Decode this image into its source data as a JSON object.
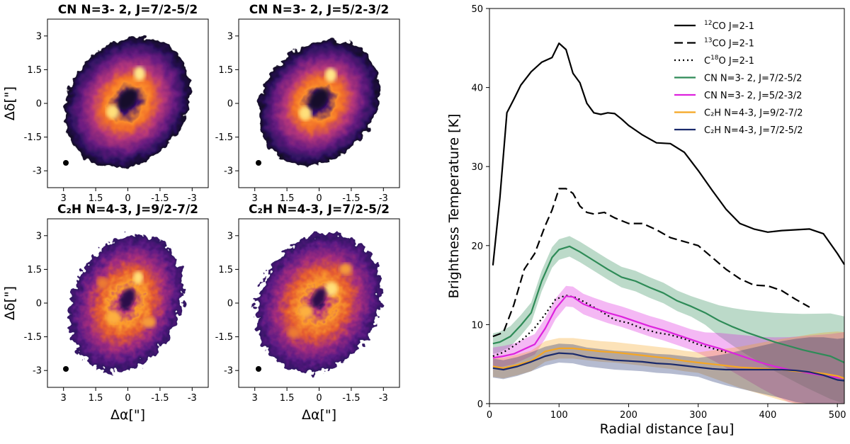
{
  "maps": {
    "panels": [
      {
        "title": "CN N=3- 2, J=7/2-5/2",
        "pattern": "ring"
      },
      {
        "title": "CN N=3- 2, J=5/2-3/2",
        "pattern": "ring"
      },
      {
        "title": "C₂H N=4-3, J=9/2-7/2",
        "pattern": "clumpy"
      },
      {
        "title": "C₂H N=4-3, J=7/2-5/2",
        "pattern": "clumpy"
      }
    ],
    "xticks": [
      "3",
      "1.5",
      "0",
      "-1.5",
      "-3"
    ],
    "yticks": [
      "3",
      "1.5",
      "0",
      "-1.5",
      "-3"
    ],
    "xlabel": "Δα[\"]",
    "ylabel": "Δδ[\"]"
  },
  "chart_data": {
    "type": "line",
    "xlabel": "Radial distance [au]",
    "ylabel": "Brightness Temperature [K]",
    "xlim": [
      0,
      510
    ],
    "ylim": [
      0,
      50
    ],
    "xticks": [
      0,
      100,
      200,
      300,
      400,
      500
    ],
    "yticks": [
      0,
      10,
      20,
      30,
      40,
      50
    ],
    "legend_position": "top-right",
    "series": [
      {
        "name": "12CO J=2-1",
        "label_parts": [
          "",
          "12",
          "CO J=2-1"
        ],
        "color": "#000000",
        "dash": "solid",
        "x": [
          5,
          15,
          25,
          35,
          45,
          60,
          75,
          90,
          100,
          110,
          120,
          130,
          140,
          150,
          160,
          170,
          180,
          190,
          200,
          220,
          240,
          260,
          280,
          300,
          320,
          340,
          360,
          380,
          400,
          420,
          440,
          460,
          480,
          500,
          510
        ],
        "y": [
          17.5,
          26,
          36.8,
          38.5,
          40.3,
          42,
          43.2,
          43.8,
          45.6,
          44.8,
          41.8,
          40.6,
          38,
          36.8,
          36.6,
          36.8,
          36.7,
          36,
          35.2,
          34,
          33,
          32.9,
          31.8,
          29.5,
          27,
          24.6,
          22.8,
          22.1,
          21.7,
          21.9,
          22,
          22.1,
          21.5,
          19,
          17.6
        ]
      },
      {
        "name": "13CO J=2-1",
        "label_parts": [
          "",
          "13",
          "CO J=2-1"
        ],
        "color": "#000000",
        "dash": "12,6",
        "x": [
          5,
          20,
          35,
          50,
          65,
          80,
          90,
          100,
          110,
          120,
          130,
          140,
          150,
          165,
          180,
          200,
          220,
          240,
          260,
          280,
          300,
          320,
          340,
          360,
          380,
          400,
          420,
          440,
          460
        ],
        "y": [
          8.5,
          9,
          12.5,
          17,
          19,
          22.5,
          24.5,
          27.2,
          27.2,
          26.6,
          25,
          24.2,
          24,
          24.2,
          23.5,
          22.8,
          22.8,
          22,
          21,
          20.5,
          20,
          18.5,
          17,
          15.8,
          15,
          14.9,
          14.3,
          13.2,
          12.2
        ]
      },
      {
        "name": "C18O J=2-1",
        "label_parts": [
          "C",
          "18",
          "O J=2-1"
        ],
        "color": "#000000",
        "dash": "2,4",
        "x": [
          5,
          20,
          35,
          50,
          65,
          80,
          95,
          110,
          125,
          140,
          160,
          180,
          200,
          220,
          240,
          260,
          280,
          300,
          320,
          340
        ],
        "y": [
          6,
          6.5,
          7.3,
          8.3,
          9.6,
          11.3,
          13.2,
          13.7,
          13.4,
          12.7,
          11.7,
          10.6,
          10.2,
          9.5,
          9,
          8.7,
          8.2,
          7.5,
          7,
          6.5
        ]
      },
      {
        "name": "CN N=3- 2, J=7/2-5/2",
        "label_parts": [
          "CN N=3- 2, J=7/2-5/2",
          "",
          ""
        ],
        "color": "#2e8b57",
        "dash": "solid",
        "band": 1.3,
        "x": [
          5,
          15,
          30,
          45,
          60,
          75,
          90,
          100,
          115,
          130,
          150,
          170,
          190,
          210,
          230,
          250,
          270,
          290,
          310,
          330,
          350,
          370,
          390,
          410,
          430,
          450,
          470,
          490,
          510
        ],
        "y": [
          7.6,
          7.8,
          8.5,
          9.9,
          11.5,
          15.5,
          18.5,
          19.5,
          19.9,
          19.2,
          18.1,
          17,
          16,
          15.5,
          14.7,
          14,
          13,
          12.3,
          11.5,
          10.5,
          9.7,
          9,
          8.4,
          7.8,
          7.3,
          6.8,
          6.4,
          6,
          5.2
        ]
      },
      {
        "name": "CN N=3- 2, J=5/2-3/2",
        "label_parts": [
          "CN N=3- 2, J=5/2-3/2",
          "",
          ""
        ],
        "color": "#dd22dd",
        "dash": "solid",
        "band": 1.3,
        "x": [
          5,
          20,
          35,
          50,
          65,
          80,
          95,
          110,
          120,
          135,
          150,
          170,
          190,
          210,
          230,
          250,
          270,
          290,
          310,
          330,
          350,
          370,
          390,
          410,
          430,
          450,
          470,
          490,
          510
        ],
        "y": [
          5.8,
          6,
          6.3,
          6.9,
          7.5,
          9.5,
          12,
          13.6,
          13.5,
          12.6,
          12.1,
          11.5,
          11,
          10.4,
          9.8,
          9.3,
          8.7,
          8.1,
          7.5,
          7,
          6.4,
          5.8,
          5.2,
          4.7,
          4.3,
          4,
          3.7,
          3.4,
          3.2
        ]
      },
      {
        "name": "C2H N=4-3, J=9/2-7/2",
        "label_parts": [
          "C₂H N=4-3, J=9/2-7/2",
          "",
          ""
        ],
        "color": "#f5a623",
        "dash": "solid",
        "band": 1.3,
        "x": [
          5,
          20,
          40,
          60,
          80,
          100,
          120,
          140,
          160,
          180,
          200,
          220,
          240,
          260,
          280,
          300,
          320,
          340,
          360,
          380,
          400,
          420,
          440,
          460,
          480,
          500,
          510
        ],
        "y": [
          4.7,
          4.5,
          4.9,
          5.4,
          6.6,
          7,
          7,
          6.8,
          6.6,
          6.5,
          6.3,
          6.1,
          5.9,
          5.7,
          5.4,
          5.2,
          5,
          4.8,
          4.6,
          4.5,
          4.4,
          4.3,
          4.1,
          4,
          3.8,
          3.5,
          3.2
        ]
      },
      {
        "name": "C2H N=4-3, J=7/2-5/2",
        "label_parts": [
          "C₂H N=4-3, J=7/2-5/2",
          "",
          ""
        ],
        "color": "#1a2a6c",
        "dash": "solid",
        "band": 1.2,
        "x": [
          5,
          20,
          40,
          60,
          80,
          100,
          120,
          140,
          160,
          180,
          200,
          220,
          240,
          260,
          280,
          300,
          320,
          340,
          360,
          380,
          400,
          420,
          440,
          460,
          480,
          500,
          510
        ],
        "y": [
          4.5,
          4.3,
          4.7,
          5.3,
          6,
          6.4,
          6.3,
          5.9,
          5.7,
          5.5,
          5.4,
          5.3,
          5.1,
          5,
          4.8,
          4.6,
          4.4,
          4.3,
          4.3,
          4.3,
          4.3,
          4.3,
          4.2,
          4,
          3.6,
          3,
          2.9
        ]
      }
    ]
  }
}
